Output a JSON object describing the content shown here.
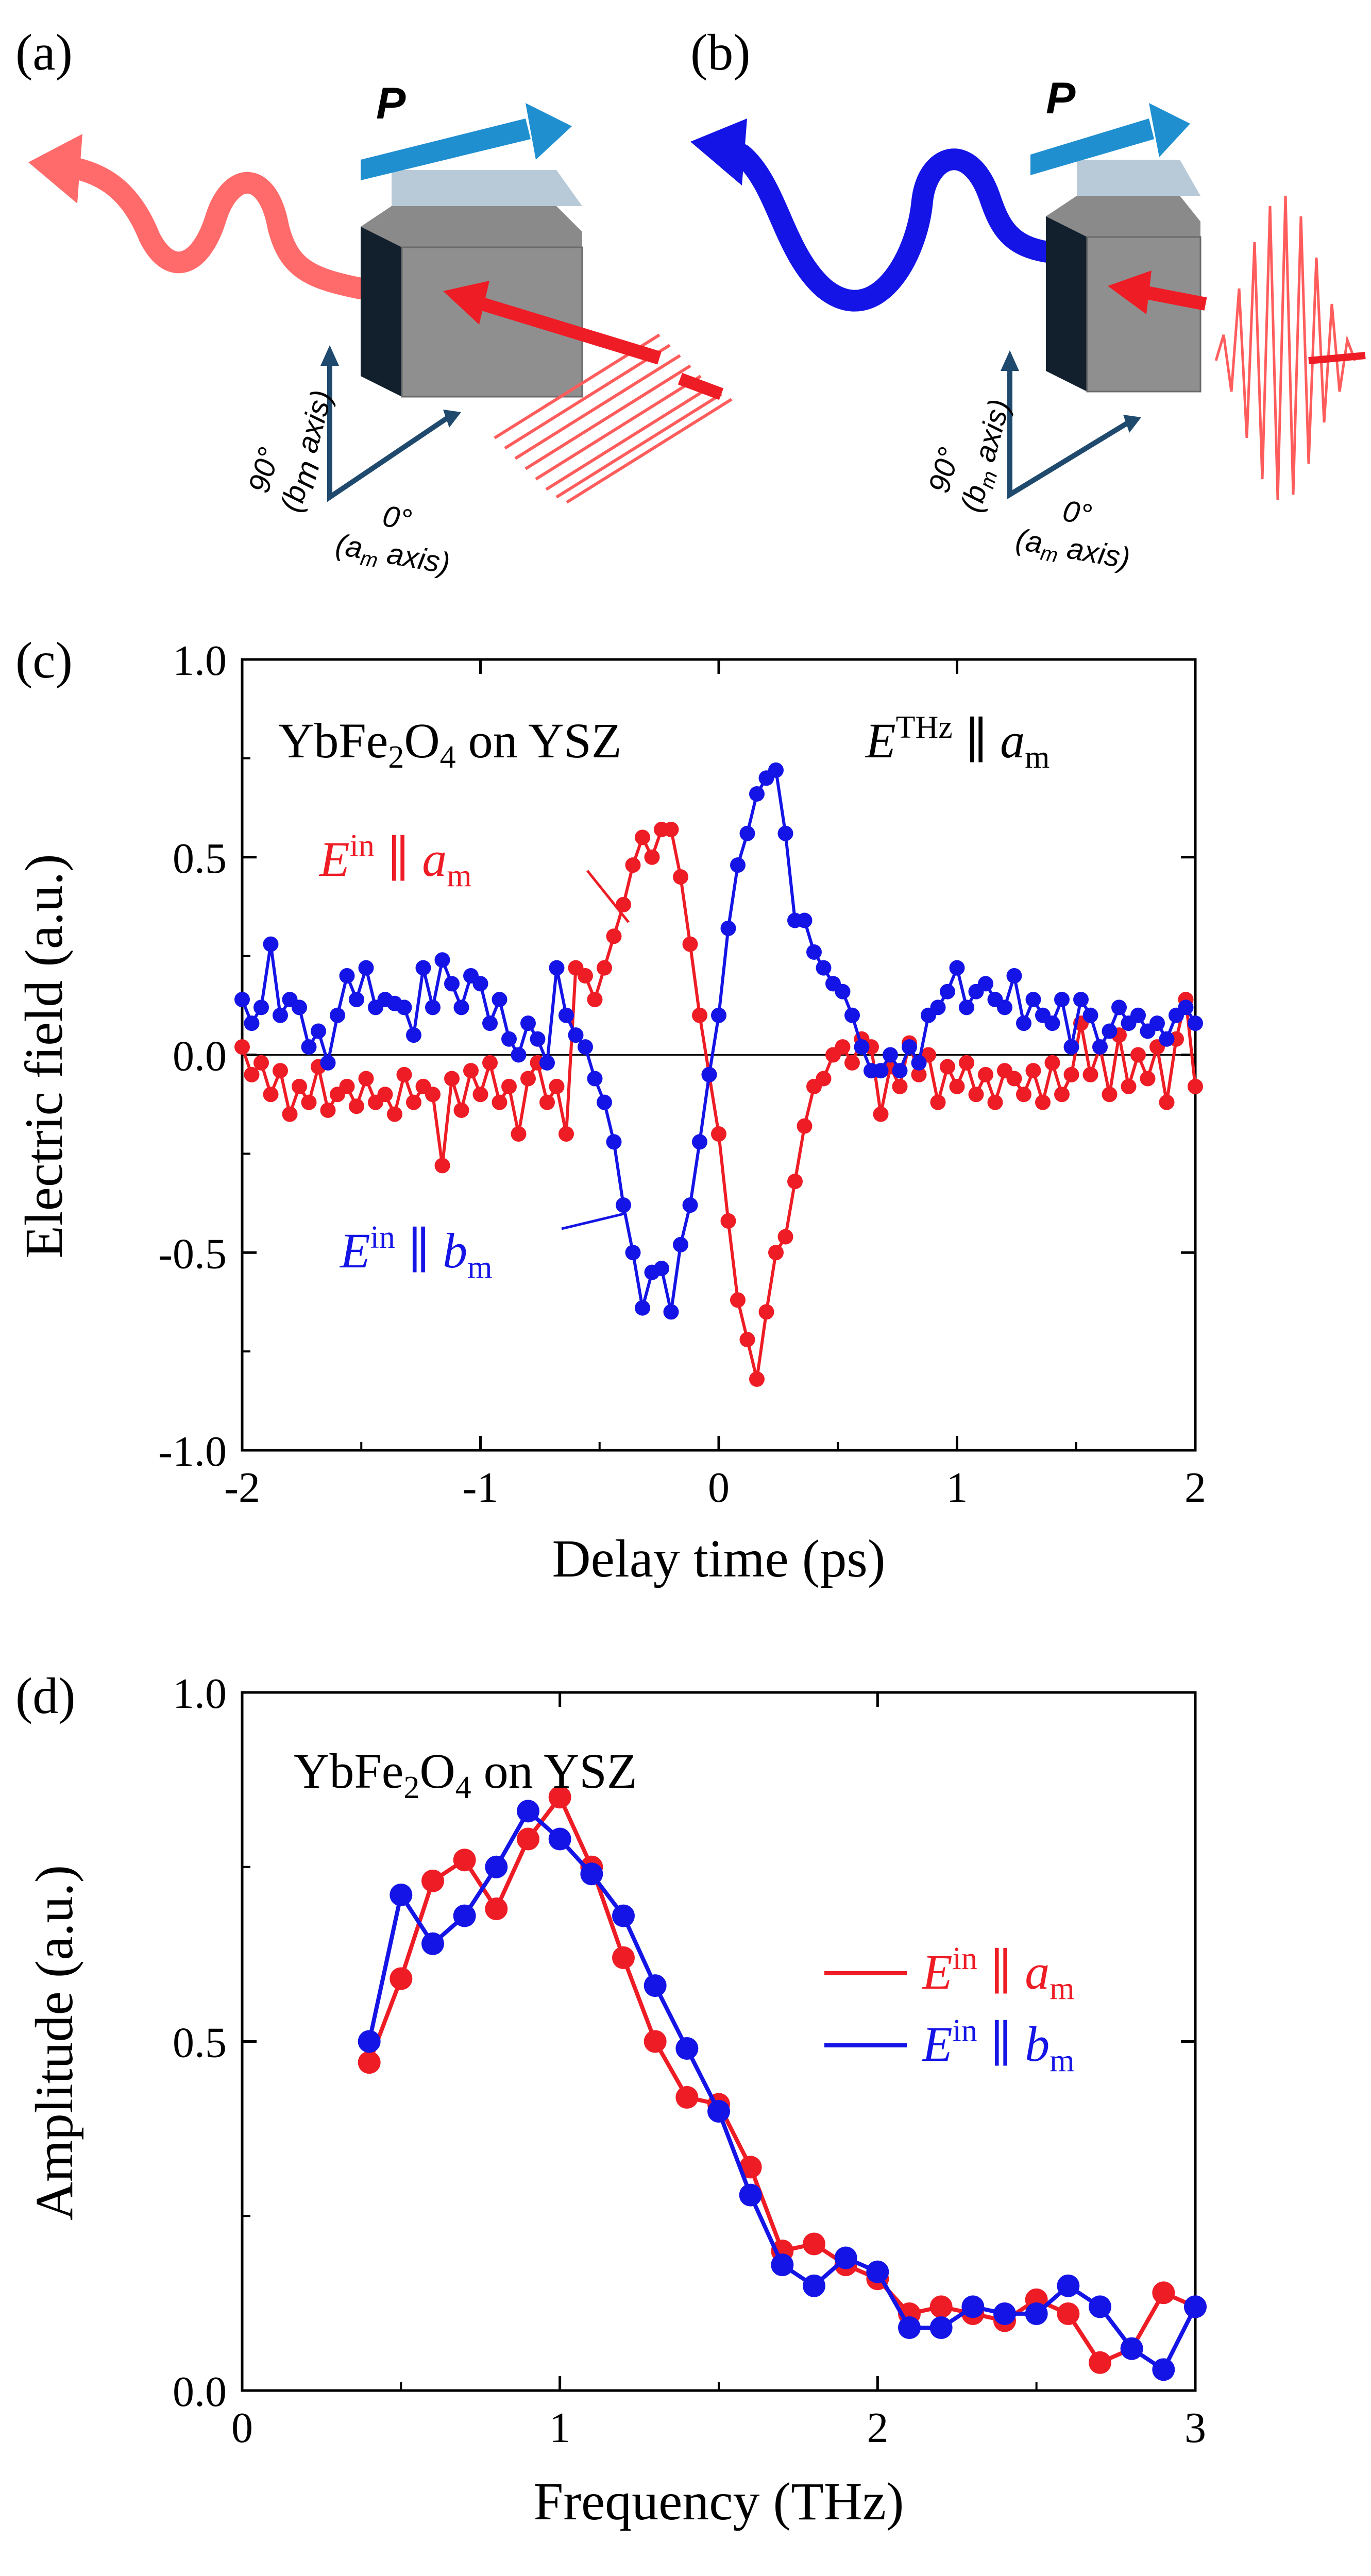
{
  "panels": {
    "a": {
      "label": "(a)",
      "polarization": "P",
      "axis_b": "90°",
      "axis_b_sub": "(b",
      "axis_b_subscript": "m",
      "axis_b_tail": " axis)",
      "axis_a": "0°",
      "axis_a_sub": "(a",
      "axis_a_subscript": "m",
      "axis_a_tail": " axis)"
    },
    "b": {
      "label": "(b)",
      "polarization": "P",
      "axis_b": "90°",
      "axis_b_sub": "(b",
      "axis_b_subscript": "m",
      "axis_b_tail": " axis)",
      "axis_a": "0°",
      "axis_a_sub": "(a",
      "axis_a_subscript": "m",
      "axis_a_tail": " axis)"
    },
    "c": {
      "label": "(c)",
      "sample_text_1": "YbFe",
      "sample_sub_1": "2",
      "sample_text_2": "O",
      "sample_sub_2": "4",
      "sample_text_3": " on YSZ",
      "thz_E": "E",
      "thz_sup": "THz",
      "thz_par": " ∥ ",
      "thz_a": "a",
      "thz_a_sub": "m",
      "ann_red_E": "E",
      "ann_red_sup": "in",
      "ann_red_par": " ∥ ",
      "ann_red_a": "a",
      "ann_red_sub": "m",
      "ann_blue_E": "E",
      "ann_blue_sup": "in",
      "ann_blue_par": " ∥ ",
      "ann_blue_b": "b",
      "ann_blue_sub": "m"
    },
    "d": {
      "label": "(d)",
      "sample_text_1": "YbFe",
      "sample_sub_1": "2",
      "sample_text_2": "O",
      "sample_sub_2": "4",
      "sample_text_3": " on YSZ",
      "legend_red_E": "E",
      "legend_red_sup": "in",
      "legend_red_par": " ∥ ",
      "legend_red_a": "a",
      "legend_red_sub": "m",
      "legend_blue_E": "E",
      "legend_blue_sup": "in",
      "legend_blue_par": " ∥ ",
      "legend_blue_b": "b",
      "legend_blue_sub": "m"
    }
  },
  "colors": {
    "red": "#ee1c25",
    "blue": "#1414e6",
    "pink": "#ff6b6b",
    "arrowblue": "#1f8fd0"
  },
  "chart_data": [
    {
      "id": "c",
      "type": "line",
      "title": "YbFe2O4 on YSZ",
      "xlabel": "Delay time (ps)",
      "ylabel": "Electric field (a.u.)",
      "xlim": [
        -2,
        2
      ],
      "ylim": [
        -1.0,
        1.0
      ],
      "xticks": [
        -2,
        -1,
        0,
        1,
        2
      ],
      "xtick_labels": [
        "-2",
        "-1",
        "0",
        "1",
        "2"
      ],
      "yticks": [
        -1.0,
        -0.5,
        0.0,
        0.5,
        1.0
      ],
      "ytick_labels": [
        "-1.0",
        "-0.5",
        "0.0",
        "0.5",
        "1.0"
      ],
      "series": [
        {
          "name": "E in ∥ a_m",
          "color": "#ee1c25",
          "x": [
            -2.0,
            -1.96,
            -1.92,
            -1.88,
            -1.84,
            -1.8,
            -1.76,
            -1.72,
            -1.68,
            -1.64,
            -1.6,
            -1.56,
            -1.52,
            -1.48,
            -1.44,
            -1.4,
            -1.36,
            -1.32,
            -1.28,
            -1.24,
            -1.2,
            -1.16,
            -1.12,
            -1.08,
            -1.04,
            -1.0,
            -0.96,
            -0.92,
            -0.88,
            -0.84,
            -0.8,
            -0.76,
            -0.72,
            -0.68,
            -0.64,
            -0.6,
            -0.56,
            -0.52,
            -0.48,
            -0.44,
            -0.4,
            -0.36,
            -0.32,
            -0.28,
            -0.24,
            -0.2,
            -0.16,
            -0.12,
            -0.08,
            -0.04,
            0.0,
            0.04,
            0.08,
            0.12,
            0.16,
            0.2,
            0.24,
            0.28,
            0.32,
            0.36,
            0.4,
            0.44,
            0.48,
            0.52,
            0.56,
            0.6,
            0.64,
            0.68,
            0.72,
            0.76,
            0.8,
            0.84,
            0.88,
            0.92,
            0.96,
            1.0,
            1.04,
            1.08,
            1.12,
            1.16,
            1.2,
            1.24,
            1.28,
            1.32,
            1.36,
            1.4,
            1.44,
            1.48,
            1.52,
            1.56,
            1.6,
            1.64,
            1.68,
            1.72,
            1.76,
            1.8,
            1.84,
            1.88,
            1.92,
            1.96,
            2.0
          ],
          "y": [
            0.02,
            -0.05,
            -0.02,
            -0.1,
            -0.04,
            -0.15,
            -0.08,
            -0.12,
            -0.03,
            -0.14,
            -0.1,
            -0.08,
            -0.13,
            -0.06,
            -0.12,
            -0.1,
            -0.15,
            -0.05,
            -0.12,
            -0.08,
            -0.1,
            -0.28,
            -0.06,
            -0.14,
            -0.04,
            -0.1,
            -0.02,
            -0.12,
            -0.08,
            -0.2,
            -0.06,
            -0.02,
            -0.12,
            -0.08,
            -0.2,
            0.22,
            0.2,
            0.14,
            0.22,
            0.3,
            0.38,
            0.48,
            0.55,
            0.5,
            0.57,
            0.57,
            0.45,
            0.28,
            0.1,
            -0.05,
            -0.2,
            -0.42,
            -0.62,
            -0.72,
            -0.82,
            -0.65,
            -0.5,
            -0.46,
            -0.32,
            -0.18,
            -0.08,
            -0.06,
            0.0,
            0.02,
            -0.02,
            0.04,
            0.02,
            -0.15,
            -0.03,
            -0.08,
            0.03,
            -0.05,
            0.0,
            -0.12,
            -0.03,
            -0.08,
            -0.02,
            -0.1,
            -0.05,
            -0.12,
            -0.04,
            -0.06,
            -0.1,
            -0.04,
            -0.12,
            -0.02,
            -0.1,
            -0.05,
            0.08,
            -0.05,
            0.02,
            -0.1,
            0.05,
            -0.08,
            0.0,
            -0.06,
            0.02,
            -0.12,
            0.04,
            0.14,
            -0.08
          ]
        },
        {
          "name": "E in ∥ b_m",
          "color": "#1414e6",
          "x": [
            -2.0,
            -1.96,
            -1.92,
            -1.88,
            -1.84,
            -1.8,
            -1.76,
            -1.72,
            -1.68,
            -1.64,
            -1.6,
            -1.56,
            -1.52,
            -1.48,
            -1.44,
            -1.4,
            -1.36,
            -1.32,
            -1.28,
            -1.24,
            -1.2,
            -1.16,
            -1.12,
            -1.08,
            -1.04,
            -1.0,
            -0.96,
            -0.92,
            -0.88,
            -0.84,
            -0.8,
            -0.76,
            -0.72,
            -0.68,
            -0.64,
            -0.6,
            -0.56,
            -0.52,
            -0.48,
            -0.44,
            -0.4,
            -0.36,
            -0.32,
            -0.28,
            -0.24,
            -0.2,
            -0.16,
            -0.12,
            -0.08,
            -0.04,
            0.0,
            0.04,
            0.08,
            0.12,
            0.16,
            0.2,
            0.24,
            0.28,
            0.32,
            0.36,
            0.4,
            0.44,
            0.48,
            0.52,
            0.56,
            0.6,
            0.64,
            0.68,
            0.72,
            0.76,
            0.8,
            0.84,
            0.88,
            0.92,
            0.96,
            1.0,
            1.04,
            1.08,
            1.12,
            1.16,
            1.2,
            1.24,
            1.28,
            1.32,
            1.36,
            1.4,
            1.44,
            1.48,
            1.52,
            1.56,
            1.6,
            1.64,
            1.68,
            1.72,
            1.76,
            1.8,
            1.84,
            1.88,
            1.92,
            1.96,
            2.0
          ],
          "y": [
            0.14,
            0.08,
            0.12,
            0.28,
            0.1,
            0.14,
            0.12,
            0.02,
            0.06,
            -0.02,
            0.1,
            0.2,
            0.14,
            0.22,
            0.12,
            0.14,
            0.13,
            0.12,
            0.05,
            0.22,
            0.12,
            0.24,
            0.18,
            0.12,
            0.2,
            0.18,
            0.08,
            0.14,
            0.04,
            0.0,
            0.08,
            0.04,
            -0.02,
            0.22,
            0.1,
            0.05,
            0.02,
            -0.06,
            -0.12,
            -0.22,
            -0.38,
            -0.5,
            -0.64,
            -0.55,
            -0.54,
            -0.65,
            -0.48,
            -0.38,
            -0.22,
            -0.05,
            0.1,
            0.32,
            0.48,
            0.56,
            0.66,
            0.7,
            0.72,
            0.56,
            0.34,
            0.34,
            0.26,
            0.22,
            0.18,
            0.16,
            0.1,
            0.02,
            -0.04,
            -0.04,
            0.0,
            -0.04,
            0.02,
            -0.02,
            0.1,
            0.12,
            0.16,
            0.22,
            0.12,
            0.16,
            0.18,
            0.14,
            0.12,
            0.2,
            0.08,
            0.14,
            0.1,
            0.08,
            0.14,
            0.02,
            0.14,
            0.1,
            0.02,
            0.06,
            0.12,
            0.08,
            0.1,
            0.06,
            0.08,
            0.04,
            0.1,
            0.12,
            0.08
          ]
        }
      ]
    },
    {
      "id": "d",
      "type": "line",
      "title": "YbFe2O4 on YSZ",
      "xlabel": "Frequency (THz)",
      "ylabel": "Amplitude (a.u.)",
      "xlim": [
        0,
        3
      ],
      "ylim": [
        0.0,
        1.0
      ],
      "xticks": [
        0,
        1,
        2,
        3
      ],
      "xtick_labels": [
        "0",
        "1",
        "2",
        "3"
      ],
      "yticks": [
        0.0,
        0.5,
        1.0
      ],
      "ytick_labels": [
        "0.0",
        "0.5",
        "1.0"
      ],
      "series": [
        {
          "name": "E in ∥ a_m",
          "color": "#ee1c25",
          "x": [
            0.4,
            0.5,
            0.6,
            0.7,
            0.8,
            0.9,
            1.0,
            1.1,
            1.2,
            1.3,
            1.4,
            1.5,
            1.6,
            1.7,
            1.8,
            1.9,
            2.0,
            2.1,
            2.2,
            2.3,
            2.4,
            2.5,
            2.6,
            2.7,
            2.8,
            2.9,
            3.0
          ],
          "y": [
            0.47,
            0.59,
            0.73,
            0.76,
            0.69,
            0.79,
            0.85,
            0.75,
            0.62,
            0.5,
            0.42,
            0.41,
            0.32,
            0.2,
            0.21,
            0.18,
            0.16,
            0.11,
            0.12,
            0.11,
            0.1,
            0.13,
            0.11,
            0.04,
            0.06,
            0.14,
            0.12
          ]
        },
        {
          "name": "E in ∥ b_m",
          "color": "#1414e6",
          "x": [
            0.4,
            0.5,
            0.6,
            0.7,
            0.8,
            0.9,
            1.0,
            1.1,
            1.2,
            1.3,
            1.4,
            1.5,
            1.6,
            1.7,
            1.8,
            1.9,
            2.0,
            2.1,
            2.2,
            2.3,
            2.4,
            2.5,
            2.6,
            2.7,
            2.8,
            2.9,
            3.0
          ],
          "y": [
            0.5,
            0.71,
            0.64,
            0.68,
            0.75,
            0.83,
            0.79,
            0.74,
            0.68,
            0.58,
            0.49,
            0.4,
            0.28,
            0.18,
            0.15,
            0.19,
            0.17,
            0.09,
            0.09,
            0.12,
            0.11,
            0.11,
            0.15,
            0.12,
            0.06,
            0.03,
            0.12
          ]
        }
      ]
    }
  ]
}
